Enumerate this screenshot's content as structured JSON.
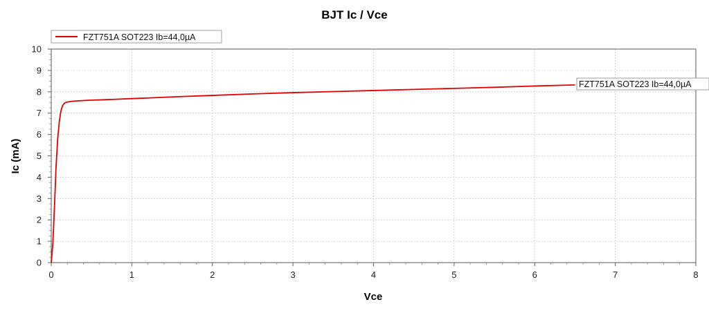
{
  "chart_data": {
    "type": "line",
    "title": "BJT Ic / Vce",
    "xlabel": "Vce",
    "ylabel": "Ic (mA)",
    "xlim": [
      0,
      8
    ],
    "ylim": [
      0,
      10
    ],
    "x_ticks": [
      "0",
      "1",
      "2",
      "3",
      "4",
      "5",
      "6",
      "7",
      "8"
    ],
    "y_ticks": [
      "0",
      "1",
      "2",
      "3",
      "4",
      "5",
      "6",
      "7",
      "8",
      "9",
      "10"
    ],
    "grid": true,
    "legend_position": "top-left",
    "series": [
      {
        "name": "FZT751A SOT223 Ib=44,0µA",
        "color": "#e00000",
        "end_label": "FZT751A SOT223 Ib=44,0µA",
        "x": [
          0,
          0.02,
          0.04,
          0.06,
          0.08,
          0.1,
          0.12,
          0.14,
          0.16,
          0.18,
          0.2,
          0.25,
          0.3,
          0.4,
          0.5,
          0.6,
          0.8,
          1.0,
          1.2,
          1.5,
          2.0,
          2.5,
          3.0,
          3.5,
          4.0,
          4.5,
          5.0,
          5.5,
          6.0,
          6.5
        ],
        "y": [
          0,
          0.9,
          2.6,
          4.5,
          5.8,
          6.6,
          7.1,
          7.35,
          7.45,
          7.5,
          7.52,
          7.55,
          7.57,
          7.59,
          7.61,
          7.62,
          7.65,
          7.68,
          7.71,
          7.76,
          7.83,
          7.9,
          7.96,
          8.01,
          8.06,
          8.11,
          8.16,
          8.21,
          8.27,
          8.32
        ]
      }
    ]
  }
}
